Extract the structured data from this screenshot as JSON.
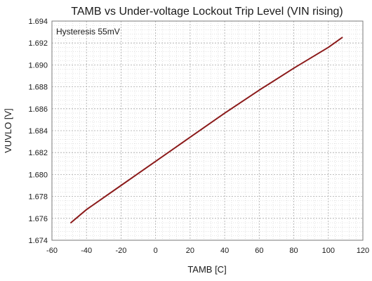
{
  "chart_data": {
    "type": "line",
    "title": "TAMB vs Under-voltage Lockout Trip Level (VIN rising)",
    "xlabel": "TAMB [C]",
    "ylabel": "VUVLO [V]",
    "xlim": [
      -60,
      120
    ],
    "ylim": [
      1.674,
      1.694
    ],
    "xticks": [
      "-60",
      "-40",
      "-20",
      "0",
      "20",
      "40",
      "60",
      "80",
      "100",
      "120"
    ],
    "yticks": [
      "1.674",
      "1.676",
      "1.678",
      "1.680",
      "1.682",
      "1.684",
      "1.686",
      "1.688",
      "1.690",
      "1.692",
      "1.694"
    ],
    "grid": true,
    "legend": "none",
    "annotation": "Hysteresis 55mV",
    "series": [
      {
        "color": "#8b1a1a",
        "x": [
          -49,
          -40,
          -20,
          0,
          20,
          40,
          60,
          80,
          100,
          108
        ],
        "y": [
          1.6756,
          1.6768,
          1.679,
          1.6812,
          1.6834,
          1.6856,
          1.6877,
          1.6897,
          1.6916,
          1.6925
        ]
      }
    ]
  }
}
